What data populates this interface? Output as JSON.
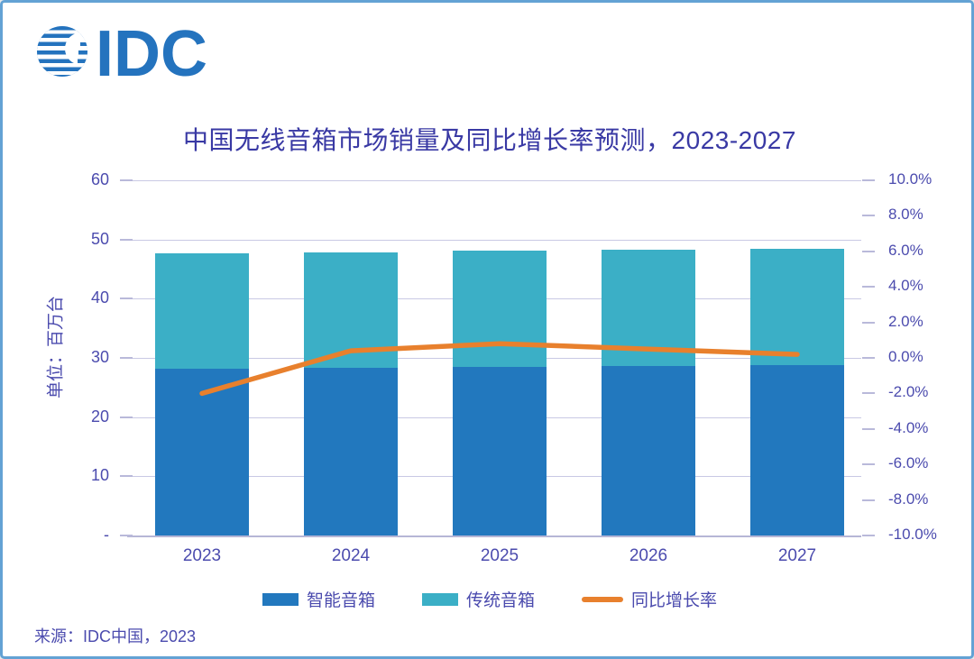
{
  "logo": {
    "text": "IDC",
    "color": "#2473BE"
  },
  "chart_data": {
    "type": "combo-stacked-bar-line",
    "title": "中国无线音箱市场销量及同比增长率预测，2023-2027",
    "categories": [
      "2023",
      "2024",
      "2025",
      "2026",
      "2027"
    ],
    "series": [
      {
        "name": "智能音箱",
        "type": "bar",
        "stack": "sales",
        "color": "#2278BE",
        "values": [
          28.1,
          28.3,
          28.5,
          28.7,
          28.8
        ]
      },
      {
        "name": "传统音箱",
        "type": "bar",
        "stack": "sales",
        "color": "#3BAFC6",
        "values": [
          19.5,
          19.5,
          19.6,
          19.6,
          19.7
        ]
      },
      {
        "name": "同比增长率",
        "type": "line",
        "axis": "right",
        "color": "#E8802D",
        "values_pct": [
          -2.0,
          0.4,
          0.8,
          0.5,
          0.2
        ]
      }
    ],
    "totals": [
      47.6,
      47.8,
      48.1,
      48.3,
      48.5
    ],
    "left_axis": {
      "label": "单位：百万台",
      "min": 0,
      "max": 60,
      "ticks": [
        "60",
        "50",
        "40",
        "30",
        "20",
        "10",
        "-"
      ]
    },
    "right_axis": {
      "min": -10,
      "max": 10,
      "ticks": [
        "10.0%",
        "8.0%",
        "6.0%",
        "4.0%",
        "2.0%",
        "0.0%",
        "-2.0%",
        "-4.0%",
        "-6.0%",
        "-8.0%",
        "-10.0%"
      ]
    },
    "grid": true,
    "grid_color": "#C9C9E4",
    "text_color": "#4B4BAE",
    "title_color": "#3939A4",
    "legend_position": "bottom"
  },
  "footer": {
    "source": "来源：IDC中国，2023"
  }
}
